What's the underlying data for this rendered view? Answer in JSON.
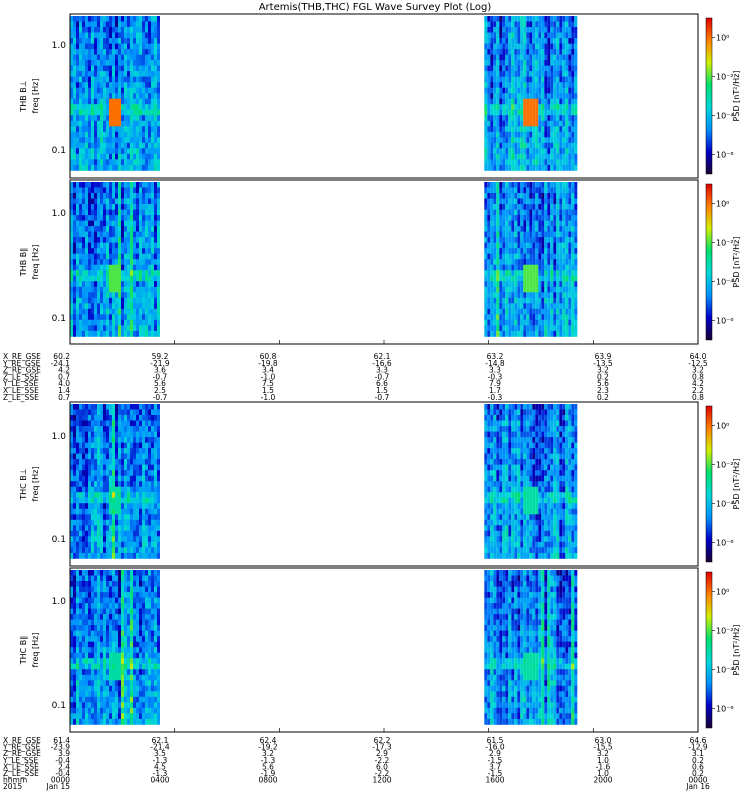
{
  "title": "Artemis(THB,THC) FGL Wave Survey Plot (Log)",
  "colorbar": {
    "label": "PSD [nT²/Hz]",
    "ticks": [
      "10⁰",
      "10⁻²",
      "10⁻⁴",
      "10⁻⁶"
    ],
    "tick_exponents": [
      0,
      -2,
      -4,
      -6
    ],
    "range_exponent": [
      -7,
      1
    ],
    "colors": [
      "#1a0033",
      "#0000c8",
      "#0090ff",
      "#00d8d8",
      "#00e070",
      "#d0f000",
      "#ff8000",
      "#e00000"
    ]
  },
  "chart_data": [
    {
      "type": "heatmap",
      "panel": "THB B⊥",
      "ylabel_probe": "THB B⊥",
      "ylabel_freq": "freq [Hz]",
      "yscale": "log",
      "ylim": [
        0.055,
        2.0
      ],
      "yticks": [
        "1.0",
        "0.1"
      ],
      "ytick_values": [
        1.0,
        0.1
      ],
      "data_intervals_hhmm": [
        [
          "0000",
          "0330"
        ],
        [
          "1550",
          "1930"
        ]
      ],
      "enhanced_band_hz": 0.25,
      "peak_psd_exponent": 0
    },
    {
      "type": "heatmap",
      "panel": "THB B∥",
      "ylabel_probe": "THB B∥",
      "ylabel_freq": "freq [Hz]",
      "yscale": "log",
      "ylim": [
        0.055,
        2.0
      ],
      "yticks": [
        "1.0",
        "0.1"
      ],
      "ytick_values": [
        1.0,
        0.1
      ],
      "data_intervals_hhmm": [
        [
          "0000",
          "0330"
        ],
        [
          "1550",
          "1930"
        ]
      ],
      "enhanced_band_hz": 0.25,
      "peak_psd_exponent": -2
    },
    {
      "type": "heatmap",
      "panel": "THC B⊥",
      "ylabel_probe": "THC B⊥",
      "ylabel_freq": "freq [Hz]",
      "yscale": "log",
      "ylim": [
        0.055,
        2.0
      ],
      "yticks": [
        "1.0",
        "0.1"
      ],
      "ytick_values": [
        1.0,
        0.1
      ],
      "data_intervals_hhmm": [
        [
          "0000",
          "0330"
        ],
        [
          "1550",
          "1930"
        ]
      ],
      "enhanced_band_hz": 0.25,
      "peak_psd_exponent": -3
    },
    {
      "type": "heatmap",
      "panel": "THC B∥",
      "ylabel_probe": "THC B∥",
      "ylabel_freq": "freq [Hz]",
      "yscale": "log",
      "ylim": [
        0.055,
        2.0
      ],
      "yticks": [
        "1.0",
        "0.1"
      ],
      "ytick_values": [
        1.0,
        0.1
      ],
      "data_intervals_hhmm": [
        [
          "0000",
          "0330"
        ],
        [
          "1550",
          "1930"
        ]
      ],
      "enhanced_band_hz": 0.25,
      "peak_psd_exponent": -3
    }
  ],
  "ephemeris_thb": {
    "labels": [
      "X_RE_GSE",
      "Y_RE_GSE",
      "Z_RE_GSE",
      "Z_LE_SSE",
      "Y_LE_SSE",
      "X_LE_SSE",
      "Z_LE_SSE"
    ],
    "values": [
      [
        "60.2",
        "59.2",
        "60.8",
        "62.1",
        "63.2",
        "63.9",
        "64.0"
      ],
      [
        "-24.1",
        "-21.9",
        "-19.8",
        "-16.6",
        "-14.8",
        "-13.5",
        "-12.5"
      ],
      [
        "4.2",
        "3.6",
        "3.4",
        "3.3",
        "3.3",
        "3.2",
        "3.2"
      ],
      [
        "0.7",
        "-0.7",
        "-1.0",
        "-0.7",
        "-0.3",
        "0.2",
        "0.8"
      ],
      [
        "4.0",
        "5.6",
        "7.5",
        "6.6",
        "7.9",
        "5.6",
        "4.2"
      ],
      [
        "1.4",
        "2.5",
        "1.5",
        "1.5",
        "1.7",
        "2.3",
        "2.2"
      ],
      [
        "0.7",
        "-0.7",
        "-1.0",
        "-0.7",
        "-0.3",
        "0.2",
        "0.8"
      ]
    ]
  },
  "ephemeris_thc": {
    "labels": [
      "X_RE_GSE",
      "Y_RE_GSE",
      "Z_RE_GSE",
      "Y_LE_SSE",
      "X_LE_SSE",
      "Z_LE_SSE",
      "hhmm",
      "2015"
    ],
    "values": [
      [
        "61.4",
        "62.1",
        "62.4",
        "62.2",
        "61.5",
        "63.0",
        "64.6"
      ],
      [
        "-23.9",
        "-21.4",
        "-19.2",
        "-17.3",
        "-16.0",
        "-15.5",
        "-12.9"
      ],
      [
        "3.9",
        "3.5",
        "3.2",
        "2.9",
        "2.9",
        "3.2",
        "3.1"
      ],
      [
        "-0.4",
        "-1.3",
        "-1.3",
        "-2.2",
        "-1.5",
        "1.0",
        "0.2"
      ],
      [
        "2.4",
        "4.5",
        "5.6",
        "6.0",
        "3.7",
        "-1.6",
        "0.6"
      ],
      [
        "-0.4",
        "-1.3",
        "-1.9",
        "-2.2",
        "-1.5",
        "1.0",
        "0.2"
      ],
      [
        "0000",
        "0400",
        "0800",
        "1200",
        "1600",
        "2000",
        "0000"
      ],
      [
        "Jan 15",
        "",
        "",
        "",
        "",
        "",
        "Jan 16"
      ]
    ]
  }
}
